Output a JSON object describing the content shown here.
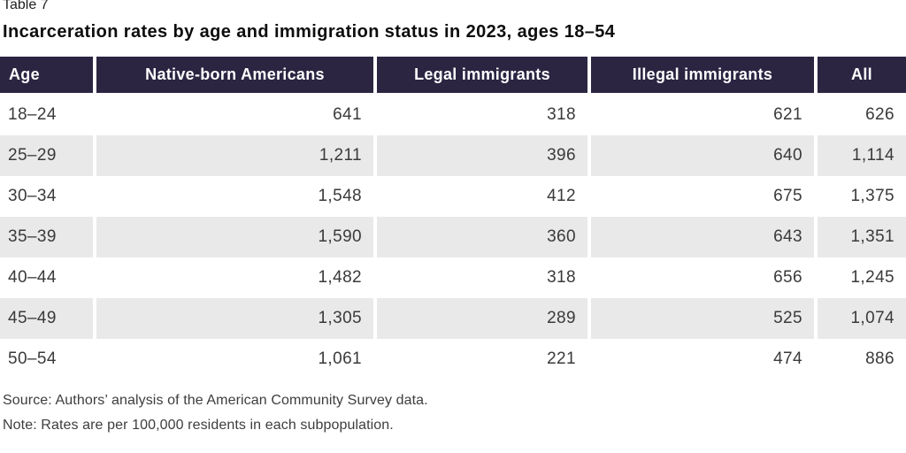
{
  "header": {
    "table_label": "Table 7",
    "title": "Incarceration rates by age and immigration status in 2023, ages 18–54"
  },
  "table": {
    "columns": [
      "Age",
      "Native-born Americans",
      "Legal immigrants",
      "Illegal immigrants",
      "All"
    ],
    "rows": [
      {
        "age": "18–24",
        "values": [
          "641",
          "318",
          "621",
          "626"
        ]
      },
      {
        "age": "25–29",
        "values": [
          "1,211",
          "396",
          "640",
          "1,114"
        ]
      },
      {
        "age": "30–34",
        "values": [
          "1,548",
          "412",
          "675",
          "1,375"
        ]
      },
      {
        "age": "35–39",
        "values": [
          "1,590",
          "360",
          "643",
          "1,351"
        ]
      },
      {
        "age": "40–44",
        "values": [
          "1,482",
          "318",
          "656",
          "1,245"
        ]
      },
      {
        "age": "45–49",
        "values": [
          "1,305",
          "289",
          "525",
          "1,074"
        ]
      },
      {
        "age": "50–54",
        "values": [
          "1,061",
          "221",
          "474",
          "886"
        ]
      }
    ]
  },
  "footer": {
    "source": "Source: Authors’ analysis of the American Community Survey data.",
    "note": "Note: Rates are per 100,000 residents in each subpopulation."
  },
  "colors": {
    "header_background": "#2b2542",
    "header_text": "#ffffff",
    "row_stripe": "#e9e9e9",
    "body_text": "#3a3a3a"
  }
}
